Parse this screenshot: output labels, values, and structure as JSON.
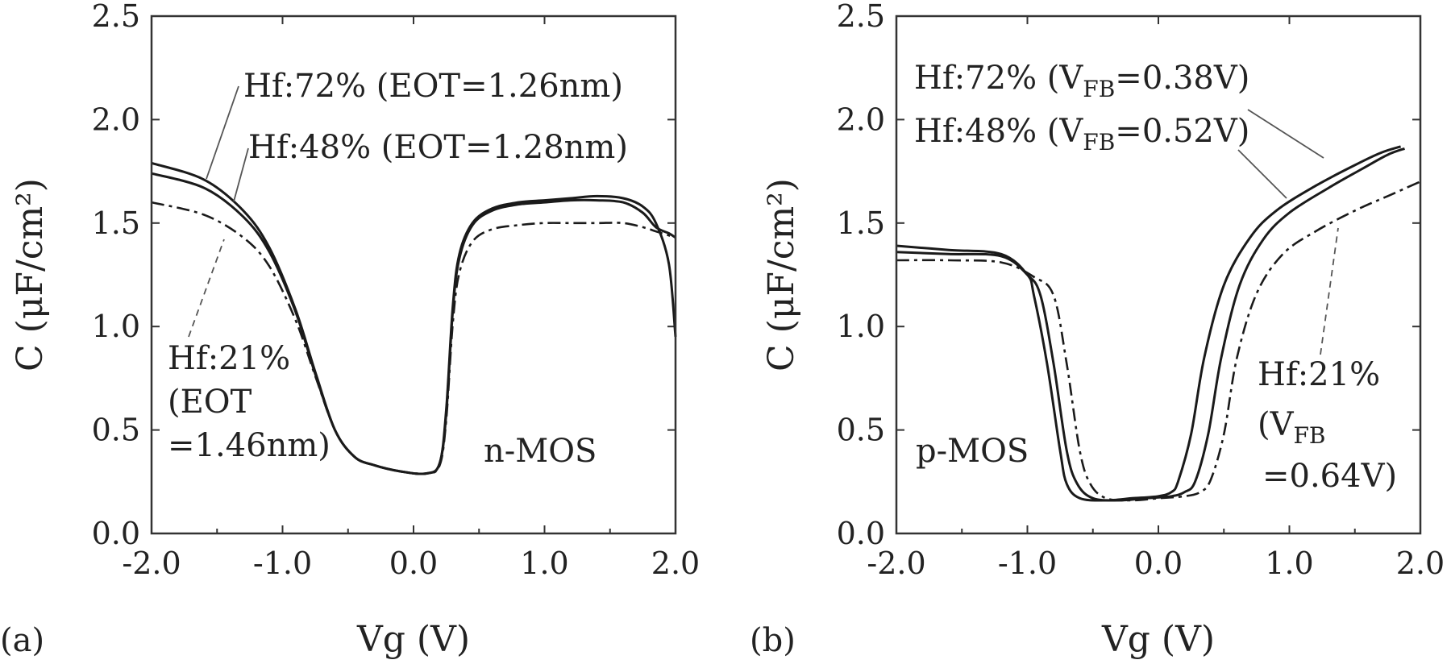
{
  "chart_data": [
    {
      "id": "a",
      "panel_label": "(a)",
      "type": "line",
      "xlabel": "Vg (V)",
      "ylabel": "C (μF/cm²)",
      "xlim": [
        -2.0,
        2.0
      ],
      "ylim": [
        0.0,
        2.5
      ],
      "xticks": [
        "-2.0",
        "-1.0",
        "0.0",
        "1.0",
        "2.0"
      ],
      "yticks": [
        "0.0",
        "0.5",
        "1.0",
        "1.5",
        "2.0",
        "2.5"
      ],
      "device_label": "n-MOS",
      "series": [
        {
          "name": "Hf:72%",
          "style": "solid",
          "x": [
            -2.0,
            -1.6,
            -1.3,
            -1.1,
            -0.9,
            -0.75,
            -0.6,
            -0.45,
            -0.3,
            -0.1,
            0.1,
            0.2,
            0.25,
            0.3,
            0.35,
            0.45,
            0.6,
            0.8,
            1.0,
            1.2,
            1.4,
            1.6,
            1.75,
            1.85,
            1.95,
            2.0
          ],
          "y": [
            1.79,
            1.71,
            1.56,
            1.38,
            1.08,
            0.78,
            0.5,
            0.37,
            0.33,
            0.3,
            0.29,
            0.34,
            0.6,
            1.1,
            1.35,
            1.5,
            1.57,
            1.6,
            1.61,
            1.62,
            1.63,
            1.62,
            1.58,
            1.5,
            1.3,
            0.95
          ]
        },
        {
          "name": "Hf:48%",
          "style": "solid",
          "x": [
            -2.0,
            -1.6,
            -1.3,
            -1.1,
            -0.9,
            -0.75,
            -0.6,
            -0.45,
            -0.3,
            -0.1,
            0.1,
            0.2,
            0.25,
            0.3,
            0.35,
            0.45,
            0.6,
            0.8,
            1.0,
            1.2,
            1.4,
            1.6,
            1.75,
            1.85,
            1.95,
            2.0
          ],
          "y": [
            1.74,
            1.67,
            1.53,
            1.36,
            1.07,
            0.77,
            0.5,
            0.37,
            0.33,
            0.3,
            0.29,
            0.34,
            0.58,
            1.08,
            1.33,
            1.49,
            1.56,
            1.59,
            1.6,
            1.61,
            1.61,
            1.6,
            1.55,
            1.48,
            1.45,
            1.43
          ]
        },
        {
          "name": "Hf:21%",
          "style": "dashed",
          "x": [
            -2.0,
            -1.6,
            -1.3,
            -1.1,
            -0.9,
            -0.75,
            -0.6,
            -0.45,
            -0.3,
            -0.1,
            0.1,
            0.2,
            0.25,
            0.3,
            0.35,
            0.45,
            0.6,
            0.8,
            1.0,
            1.2,
            1.4,
            1.6,
            1.75,
            1.85,
            1.95,
            2.0
          ],
          "y": [
            1.6,
            1.54,
            1.43,
            1.29,
            1.03,
            0.76,
            0.5,
            0.37,
            0.33,
            0.3,
            0.29,
            0.33,
            0.55,
            1.02,
            1.26,
            1.41,
            1.47,
            1.49,
            1.5,
            1.5,
            1.5,
            1.5,
            1.48,
            1.46,
            1.44,
            1.43
          ]
        }
      ],
      "annotations": [
        {
          "name": "Hf:72%",
          "lines": [
            "Hf:72% (EOT=1.26nm)"
          ]
        },
        {
          "name": "Hf:48%",
          "lines": [
            "Hf:48% (EOT=1.28nm)"
          ]
        },
        {
          "name": "Hf:21%",
          "lines": [
            "Hf:21%",
            "(EOT",
            "=1.46nm)"
          ]
        }
      ]
    },
    {
      "id": "b",
      "panel_label": "(b)",
      "type": "line",
      "xlabel": "Vg (V)",
      "ylabel": "C (μF/cm²)",
      "xlim": [
        -2.0,
        2.0
      ],
      "ylim": [
        0.0,
        2.5
      ],
      "xticks": [
        "-2.0",
        "-1.0",
        "0.0",
        "1.0",
        "2.0"
      ],
      "yticks": [
        "0.0",
        "0.5",
        "1.0",
        "1.5",
        "2.0",
        "2.5"
      ],
      "device_label": "p-MOS",
      "series": [
        {
          "name": "Hf:72%",
          "style": "solid",
          "x": [
            -2.0,
            -1.6,
            -1.2,
            -1.0,
            -0.95,
            -0.85,
            -0.75,
            -0.7,
            -0.6,
            -0.4,
            -0.2,
            0.0,
            0.1,
            0.15,
            0.25,
            0.35,
            0.5,
            0.7,
            0.9,
            1.2,
            1.5,
            1.7,
            1.85
          ],
          "y": [
            1.39,
            1.37,
            1.35,
            1.25,
            1.15,
            0.82,
            0.4,
            0.24,
            0.17,
            0.16,
            0.17,
            0.18,
            0.2,
            0.25,
            0.48,
            0.85,
            1.2,
            1.43,
            1.56,
            1.68,
            1.78,
            1.84,
            1.87
          ]
        },
        {
          "name": "Hf:48%",
          "style": "solid",
          "x": [
            -2.0,
            -1.6,
            -1.2,
            -1.0,
            -0.9,
            -0.8,
            -0.7,
            -0.62,
            -0.5,
            -0.3,
            -0.1,
            0.1,
            0.2,
            0.28,
            0.38,
            0.48,
            0.62,
            0.8,
            1.0,
            1.3,
            1.55,
            1.75,
            1.88
          ],
          "y": [
            1.36,
            1.35,
            1.34,
            1.25,
            1.15,
            0.82,
            0.4,
            0.24,
            0.17,
            0.16,
            0.17,
            0.18,
            0.2,
            0.25,
            0.48,
            0.85,
            1.2,
            1.42,
            1.55,
            1.67,
            1.76,
            1.83,
            1.86
          ]
        },
        {
          "name": "Hf:21%",
          "style": "dashed",
          "x": [
            -2.0,
            -1.6,
            -1.2,
            -0.95,
            -0.8,
            -0.7,
            -0.6,
            -0.52,
            -0.4,
            -0.2,
            0.0,
            0.2,
            0.32,
            0.4,
            0.5,
            0.6,
            0.75,
            0.95,
            1.2,
            1.5,
            1.75,
            2.0
          ],
          "y": [
            1.32,
            1.32,
            1.31,
            1.24,
            1.15,
            0.82,
            0.4,
            0.24,
            0.17,
            0.16,
            0.17,
            0.18,
            0.2,
            0.26,
            0.48,
            0.85,
            1.16,
            1.35,
            1.46,
            1.56,
            1.63,
            1.7
          ]
        }
      ],
      "annotations": [
        {
          "name": "Hf:72%",
          "prefix": "Hf:72% (V",
          "sub": "FB",
          "suffix": "=0.38V)"
        },
        {
          "name": "Hf:48%",
          "prefix": "Hf:48% (V",
          "sub": "FB",
          "suffix": "=0.52V)"
        },
        {
          "name": "Hf:21%",
          "lines": [
            "Hf:21%",
            "(V",
            "=0.64V)"
          ],
          "sub": "FB"
        }
      ]
    }
  ]
}
